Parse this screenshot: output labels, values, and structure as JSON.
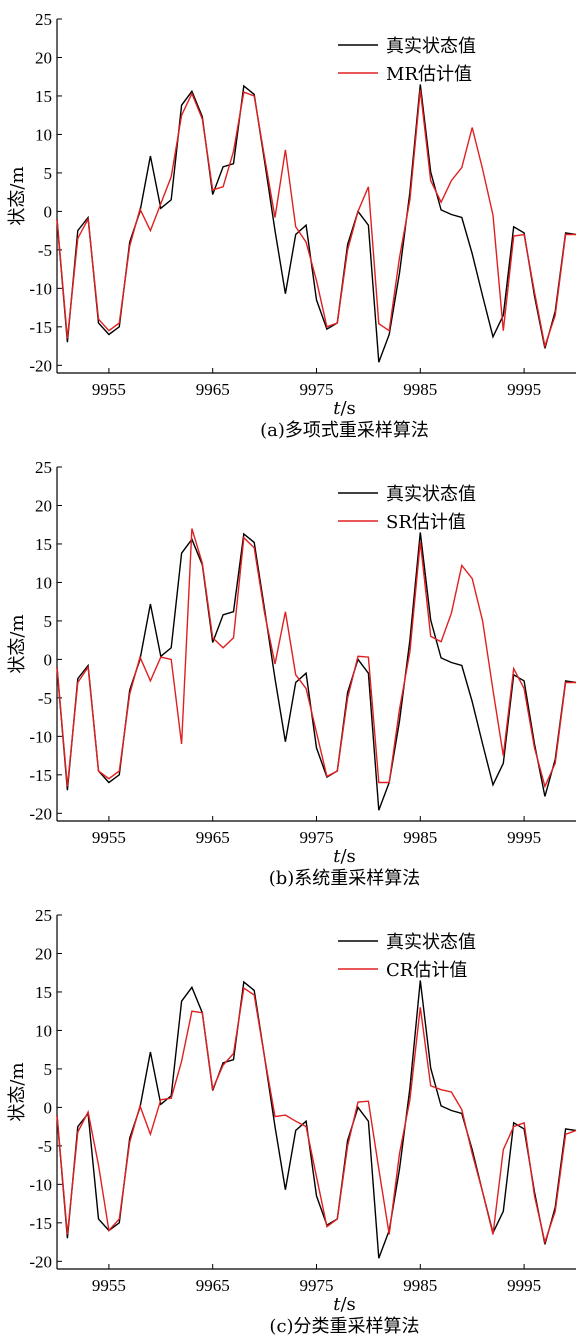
{
  "chart_data": [
    {
      "type": "line",
      "caption": "(a)多项式重采样算法",
      "xlabel": "t/s",
      "ylabel": "状态/m",
      "xlim": [
        9950,
        10000
      ],
      "ylim": [
        -21,
        25
      ],
      "xticks": [
        9955,
        9965,
        9975,
        9985,
        9995
      ],
      "yticks": [
        -20,
        -15,
        -10,
        -5,
        0,
        5,
        10,
        15,
        20,
        25
      ],
      "legend_position": "top-right",
      "series": [
        {
          "name": "真实状态值",
          "color": "#000000",
          "x": [
            9950,
            9951,
            9952,
            9953,
            9954,
            9955,
            9956,
            9957,
            9958,
            9959,
            9960,
            9961,
            9962,
            9963,
            9964,
            9965,
            9966,
            9967,
            9968,
            9969,
            9970,
            9971,
            9972,
            9973,
            9974,
            9975,
            9976,
            9977,
            9978,
            9979,
            9980,
            9981,
            9982,
            9983,
            9984,
            9985,
            9986,
            9987,
            9988,
            9989,
            9990,
            9991,
            9992,
            9993,
            9994,
            9995,
            9996,
            9997,
            9998,
            9999,
            10000
          ],
          "y": [
            -1,
            -17,
            -2.5,
            -0.8,
            -14.5,
            -16,
            -15,
            -4,
            0,
            7.2,
            0.4,
            1.5,
            13.8,
            15.6,
            12.3,
            2.2,
            5.8,
            6.2,
            16.3,
            15.2,
            6.5,
            -2.5,
            -10.7,
            -3,
            -1.8,
            -11.5,
            -15.3,
            -14.5,
            -4.3,
            0,
            -1.8,
            -19.6,
            -16,
            -8,
            2.5,
            16.5,
            5.1,
            0.2,
            -0.4,
            -0.8,
            -5.5,
            -11,
            -16.3,
            -13.5,
            -2,
            -2.8,
            -11,
            -17.8,
            -13,
            -2.8,
            -3
          ]
        },
        {
          "name": "MR估计值",
          "color": "#e02020",
          "x": [
            9950,
            9951,
            9952,
            9953,
            9954,
            9955,
            9956,
            9957,
            9958,
            9959,
            9960,
            9961,
            9962,
            9963,
            9964,
            9965,
            9966,
            9967,
            9968,
            9969,
            9970,
            9971,
            9972,
            9973,
            9974,
            9975,
            9976,
            9977,
            9978,
            9979,
            9980,
            9981,
            9982,
            9983,
            9984,
            9985,
            9986,
            9987,
            9988,
            9989,
            9990,
            9991,
            9992,
            9993,
            9994,
            9995,
            9996,
            9997,
            9998,
            9999,
            10000
          ],
          "y": [
            -1,
            -16.5,
            -3.5,
            -1,
            -14,
            -15.5,
            -14.5,
            -4.5,
            0.3,
            -2.5,
            1,
            4.5,
            12.5,
            15.3,
            12,
            2.8,
            3.2,
            7.8,
            15.5,
            15,
            7,
            -0.8,
            8,
            -2,
            -4,
            -9,
            -15,
            -14.5,
            -5,
            0,
            3.2,
            -14.6,
            -15.5,
            -6,
            1.5,
            15.8,
            4,
            1.2,
            4,
            5.7,
            10.9,
            5.5,
            -0.5,
            -15.5,
            -3.2,
            -3,
            -10.5,
            -17.5,
            -13.5,
            -3,
            -3
          ]
        }
      ]
    },
    {
      "type": "line",
      "caption": "(b)系统重采样算法",
      "xlabel": "t/s",
      "ylabel": "状态/m",
      "xlim": [
        9950,
        10000
      ],
      "ylim": [
        -21,
        25
      ],
      "xticks": [
        9955,
        9965,
        9975,
        9985,
        9995
      ],
      "yticks": [
        -20,
        -15,
        -10,
        -5,
        0,
        5,
        10,
        15,
        20,
        25
      ],
      "legend_position": "top-right",
      "series": [
        {
          "name": "真实状态值",
          "color": "#000000",
          "x": [
            9950,
            9951,
            9952,
            9953,
            9954,
            9955,
            9956,
            9957,
            9958,
            9959,
            9960,
            9961,
            9962,
            9963,
            9964,
            9965,
            9966,
            9967,
            9968,
            9969,
            9970,
            9971,
            9972,
            9973,
            9974,
            9975,
            9976,
            9977,
            9978,
            9979,
            9980,
            9981,
            9982,
            9983,
            9984,
            9985,
            9986,
            9987,
            9988,
            9989,
            9990,
            9991,
            9992,
            9993,
            9994,
            9995,
            9996,
            9997,
            9998,
            9999,
            10000
          ],
          "y": [
            -1,
            -17,
            -2.5,
            -0.8,
            -14.5,
            -16,
            -15,
            -4,
            0,
            7.2,
            0.4,
            1.5,
            13.8,
            15.6,
            12.3,
            2.2,
            5.8,
            6.2,
            16.3,
            15.2,
            6.5,
            -2.5,
            -10.7,
            -3,
            -1.8,
            -11.5,
            -15.3,
            -14.5,
            -4.3,
            0,
            -1.8,
            -19.6,
            -16,
            -8,
            2.5,
            16.5,
            5.1,
            0.2,
            -0.4,
            -0.8,
            -5.5,
            -11,
            -16.3,
            -13.5,
            -2,
            -2.8,
            -11,
            -17.8,
            -13,
            -2.8,
            -3
          ]
        },
        {
          "name": "SR估计值",
          "color": "#e02020",
          "x": [
            9950,
            9951,
            9952,
            9953,
            9954,
            9955,
            9956,
            9957,
            9958,
            9959,
            9960,
            9961,
            9962,
            9963,
            9964,
            9965,
            9966,
            9967,
            9968,
            9969,
            9970,
            9971,
            9972,
            9973,
            9974,
            9975,
            9976,
            9977,
            9978,
            9979,
            9980,
            9981,
            9982,
            9983,
            9984,
            9985,
            9986,
            9987,
            9988,
            9989,
            9990,
            9991,
            9992,
            9993,
            9994,
            9995,
            9996,
            9997,
            9998,
            9999,
            10000
          ],
          "y": [
            -1,
            -16.5,
            -3,
            -1,
            -14.5,
            -15.5,
            -14.5,
            -4.5,
            0.3,
            -2.8,
            0.3,
            0,
            -11,
            17,
            12.5,
            2.8,
            1.5,
            2.8,
            15.8,
            14.5,
            6,
            -0.6,
            6.2,
            -2,
            -3.8,
            -9.5,
            -15.2,
            -14.5,
            -5,
            0.4,
            0.3,
            -16,
            -16,
            -6.5,
            1,
            15.3,
            3,
            2.3,
            6,
            12.2,
            10.5,
            5,
            -4,
            -12.5,
            -1.2,
            -3.8,
            -11.5,
            -16.5,
            -13.5,
            -3,
            -3
          ]
        }
      ]
    },
    {
      "type": "line",
      "caption": "(c)分类重采样算法",
      "xlabel": "t/s",
      "ylabel": "状态/m",
      "xlim": [
        9950,
        10000
      ],
      "ylim": [
        -21,
        25
      ],
      "xticks": [
        9955,
        9965,
        9975,
        9985,
        9995
      ],
      "yticks": [
        -20,
        -15,
        -10,
        -5,
        0,
        5,
        10,
        15,
        20,
        25
      ],
      "legend_position": "top-right",
      "series": [
        {
          "name": "真实状态值",
          "color": "#000000",
          "x": [
            9950,
            9951,
            9952,
            9953,
            9954,
            9955,
            9956,
            9957,
            9958,
            9959,
            9960,
            9961,
            9962,
            9963,
            9964,
            9965,
            9966,
            9967,
            9968,
            9969,
            9970,
            9971,
            9972,
            9973,
            9974,
            9975,
            9976,
            9977,
            9978,
            9979,
            9980,
            9981,
            9982,
            9983,
            9984,
            9985,
            9986,
            9987,
            9988,
            9989,
            9990,
            9991,
            9992,
            9993,
            9994,
            9995,
            9996,
            9997,
            9998,
            9999,
            10000
          ],
          "y": [
            -1,
            -17,
            -2.5,
            -0.8,
            -14.5,
            -16,
            -15,
            -4,
            0,
            7.2,
            0.4,
            1.5,
            13.8,
            15.6,
            12.3,
            2.2,
            5.8,
            6.2,
            16.3,
            15.2,
            6.5,
            -2.5,
            -10.7,
            -3,
            -1.8,
            -11.5,
            -15.3,
            -14.5,
            -4.3,
            0,
            -1.8,
            -19.6,
            -16,
            -8,
            2.5,
            16.5,
            5.1,
            0.2,
            -0.4,
            -0.8,
            -5.5,
            -11,
            -16.3,
            -13.5,
            -2,
            -2.8,
            -11,
            -17.8,
            -13,
            -2.8,
            -3
          ]
        },
        {
          "name": "CR估计值",
          "color": "#e02020",
          "x": [
            9950,
            9951,
            9952,
            9953,
            9954,
            9955,
            9956,
            9957,
            9958,
            9959,
            9960,
            9961,
            9962,
            9963,
            9964,
            9965,
            9966,
            9967,
            9968,
            9969,
            9970,
            9971,
            9972,
            9973,
            9974,
            9975,
            9976,
            9977,
            9978,
            9979,
            9980,
            9981,
            9982,
            9983,
            9984,
            9985,
            9986,
            9987,
            9988,
            9989,
            9990,
            9991,
            9992,
            9993,
            9994,
            9995,
            9996,
            9997,
            9998,
            9999,
            10000
          ],
          "y": [
            -1,
            -16.5,
            -3.2,
            -0.6,
            -7.5,
            -16,
            -14.5,
            -4.5,
            0.2,
            -3.5,
            1,
            1.2,
            6,
            12.5,
            12.3,
            2.4,
            5.5,
            7,
            15.5,
            14.6,
            6.5,
            -1.2,
            -1,
            -1.8,
            -2.5,
            -9,
            -15.5,
            -14.5,
            -5,
            0.7,
            0.8,
            -8,
            -16.5,
            -6,
            1,
            13,
            2.8,
            2.3,
            2,
            -0.3,
            -6,
            -11,
            -16.5,
            -5.5,
            -2.5,
            -2,
            -11.5,
            -17.5,
            -13.5,
            -3.5,
            -3
          ]
        }
      ]
    }
  ]
}
